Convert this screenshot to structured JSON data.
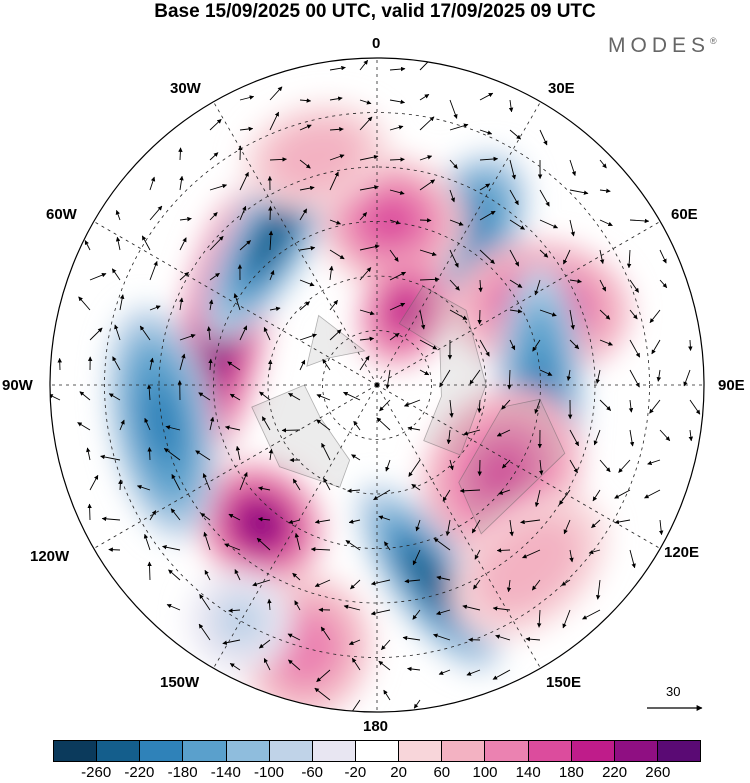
{
  "title": "Base 15/09/2025 00 UTC, valid 17/09/2025 09 UTC",
  "brand": {
    "name": "MODES",
    "mark": "®"
  },
  "longitude_labels": {
    "lon_0": "0",
    "lon_30e": "30E",
    "lon_60e": "60E",
    "lon_90e": "90E",
    "lon_120e": "120E",
    "lon_150e": "150E",
    "lon_180": "180",
    "lon_150w": "150W",
    "lon_120w": "120W",
    "lon_90w": "90W",
    "lon_60w": "60W",
    "lon_30w": "30W"
  },
  "reference_vector": {
    "label": "30"
  },
  "colorbar": {
    "colors": [
      "#0b3a5c",
      "#145e8c",
      "#2f82b9",
      "#5aa0cc",
      "#8fbddd",
      "#c0d3e8",
      "#e8e6f2",
      "#ffffff",
      "#f8d6da",
      "#f3b2c2",
      "#eb82b1",
      "#dc4c9d",
      "#bf1c8a",
      "#8f0f82",
      "#5a0a74"
    ],
    "tick_labels": [
      "-260",
      "-220",
      "-180",
      "-140",
      "-100",
      "-60",
      "-20",
      "20",
      "60",
      "100",
      "140",
      "180",
      "220",
      "260"
    ]
  },
  "anomaly_centers": [
    {
      "lon": -70,
      "lat": 45,
      "value": 240,
      "sx": 1.9,
      "sy": 0.6,
      "rot": -10
    },
    {
      "lon": -35,
      "lat": 40,
      "value": -230,
      "sx": 1.6,
      "sy": 0.55,
      "rot": -25
    },
    {
      "lon": 30,
      "lat": 40,
      "value": -200,
      "sx": 0.7,
      "sy": 1.1,
      "rot": 0
    },
    {
      "lon": 65,
      "lat": 40,
      "value": 170,
      "sx": 0.9,
      "sy": 1.2,
      "rot": 30
    },
    {
      "lon": 5,
      "lat": 45,
      "value": 150,
      "sx": 1.0,
      "sy": 0.9,
      "rot": 0
    },
    {
      "lon": 20,
      "lat": 68,
      "value": 200,
      "sx": 0.6,
      "sy": 0.8,
      "rot": 0
    },
    {
      "lon": 95,
      "lat": 45,
      "value": -200,
      "sx": 1.8,
      "sy": 0.6,
      "rot": -5
    },
    {
      "lon": 125,
      "lat": 48,
      "value": 160,
      "sx": 1.2,
      "sy": 1.0,
      "rot": 0
    },
    {
      "lon": 165,
      "lat": 35,
      "value": -240,
      "sx": 0.55,
      "sy": 1.5,
      "rot": -20
    },
    {
      "lon": -140,
      "lat": 40,
      "value": 230,
      "sx": 0.9,
      "sy": 0.8,
      "rot": 0
    },
    {
      "lon": -100,
      "lat": 30,
      "value": -200,
      "sx": 1.6,
      "sy": 0.7,
      "rot": 0
    },
    {
      "lon": -165,
      "lat": 15,
      "value": 130,
      "sx": 0.9,
      "sy": 1.0,
      "rot": 0
    },
    {
      "lon": -150,
      "lat": 15,
      "value": -80,
      "sx": 0.7,
      "sy": 0.7,
      "rot": 0
    },
    {
      "lon": 140,
      "lat": 25,
      "value": 90,
      "sx": 1.2,
      "sy": 0.8,
      "rot": 0
    },
    {
      "lon": -15,
      "lat": 25,
      "value": 90,
      "sx": 1.0,
      "sy": 0.7,
      "rot": 0
    }
  ]
}
